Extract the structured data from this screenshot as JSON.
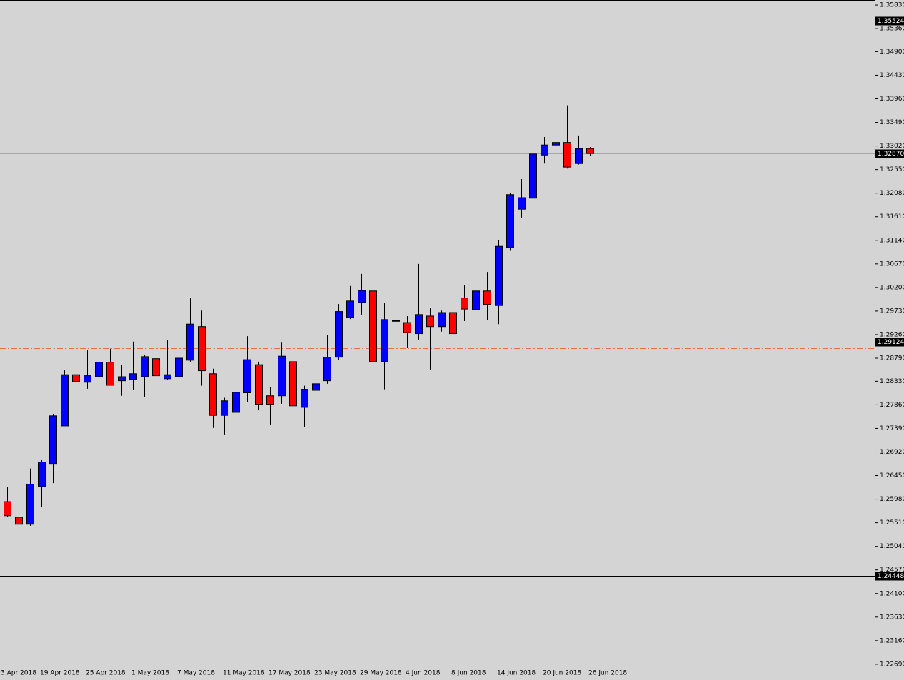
{
  "chart_data": {
    "type": "candlestick",
    "categories": [
      "3 Apr 2018",
      null,
      null,
      null,
      "19 Apr 2018",
      null,
      null,
      null,
      "25 Apr 2018",
      null,
      null,
      null,
      "1 May 2018",
      null,
      null,
      null,
      "7 May 2018",
      null,
      null,
      null,
      "11 May 2018",
      null,
      null,
      null,
      "17 May 2018",
      null,
      null,
      null,
      "23 May 2018",
      null,
      null,
      null,
      "29 May 2018",
      null,
      null,
      null,
      "4 Jun 2018",
      null,
      null,
      null,
      "8 Jun 2018",
      null,
      null,
      null,
      "14 Jun 2018",
      null,
      null,
      null,
      "20 Jun 2018",
      null,
      null,
      null,
      "26 Jun 2018"
    ],
    "open": [
      null,
      1.2593,
      1.2562,
      1.2548,
      1.2623,
      1.2669,
      1.2744,
      1.2846,
      1.2831,
      1.2842,
      1.2871,
      1.2834,
      1.2837,
      1.2842,
      1.2878,
      1.2838,
      1.2842,
      1.2875,
      1.2942,
      1.2848,
      1.2765,
      1.2771,
      1.281,
      1.2866,
      1.2804,
      1.2804,
      1.2872,
      1.2781,
      1.2815,
      1.2834,
      1.2881,
      1.296,
      1.299,
      1.3013,
      1.2872,
      1.2954,
      1.295,
      1.2928,
      1.2963,
      1.2942,
      1.297,
      1.2999,
      1.2976,
      1.3013,
      1.2984,
      1.31,
      1.3176,
      1.3198,
      1.3284,
      1.3304,
      1.3309,
      1.3267,
      1.3297
    ],
    "high": [
      null,
      1.2622,
      1.2579,
      1.2659,
      1.2676,
      1.2768,
      1.2856,
      1.2861,
      1.2896,
      1.2885,
      1.2898,
      1.2865,
      1.2912,
      1.2886,
      1.2909,
      1.2916,
      1.2899,
      1.2999,
      1.2974,
      1.2858,
      1.28,
      1.2814,
      1.2923,
      1.2872,
      1.2822,
      1.291,
      1.2892,
      1.2824,
      1.2915,
      1.2925,
      1.2987,
      1.3023,
      1.3047,
      1.3041,
      1.2989,
      1.3009,
      1.2963,
      1.3067,
      1.2979,
      1.2974,
      1.3038,
      1.3024,
      1.3027,
      1.3051,
      1.3115,
      1.3209,
      1.3236,
      1.329,
      1.332,
      1.3334,
      1.3383,
      1.3323,
      1.33
    ],
    "low": [
      null,
      1.2562,
      1.2527,
      1.2545,
      1.2583,
      1.263,
      1.2744,
      1.2811,
      1.2818,
      1.2821,
      1.2825,
      1.2804,
      1.2815,
      1.2802,
      1.2812,
      1.2835,
      1.2839,
      1.2872,
      1.2824,
      1.274,
      1.2727,
      1.2748,
      1.2792,
      1.2775,
      1.2746,
      1.2788,
      1.278,
      1.2741,
      1.2812,
      1.2828,
      1.2876,
      1.2957,
      1.2966,
      1.2835,
      1.2817,
      1.2935,
      1.2899,
      1.2915,
      1.2856,
      1.2932,
      1.2922,
      1.2953,
      1.2973,
      1.2955,
      1.2947,
      1.3093,
      1.3158,
      1.3196,
      1.3267,
      1.3282,
      1.3257,
      1.3265,
      1.3282
    ],
    "close": [
      null,
      1.2565,
      1.2548,
      1.2628,
      1.2672,
      1.2764,
      1.2846,
      1.2832,
      1.2844,
      1.2871,
      1.2825,
      1.2842,
      1.2848,
      1.2882,
      1.2844,
      1.2846,
      1.2879,
      1.2947,
      1.2854,
      1.2765,
      1.2794,
      1.2811,
      1.2876,
      1.2787,
      1.2787,
      1.2883,
      1.2784,
      1.2817,
      1.2828,
      1.2881,
      1.2972,
      1.2993,
      1.3014,
      1.2872,
      1.2956,
      1.2953,
      1.293,
      1.2966,
      1.2942,
      1.297,
      1.2928,
      1.2977,
      1.3013,
      1.2986,
      1.3102,
      1.3205,
      1.3199,
      1.3286,
      1.3304,
      1.3309,
      1.326,
      1.3297,
      1.3287
    ],
    "up_color": "#0000ff",
    "down_color": "#ff0000",
    "ylim": [
      1.2266,
      1.3593
    ],
    "yticks": [
      {
        "value": 1.3583,
        "label": "1.35830"
      },
      {
        "value": 1.3536,
        "label": "1.35360"
      },
      {
        "value": 1.349,
        "label": "1.34900"
      },
      {
        "value": 1.3443,
        "label": "1.34430"
      },
      {
        "value": 1.3396,
        "label": "1.33960"
      },
      {
        "value": 1.3349,
        "label": "1.33490"
      },
      {
        "value": 1.3302,
        "label": "1.33020"
      },
      {
        "value": 1.3255,
        "label": "1.32550"
      },
      {
        "value": 1.3208,
        "label": "1.32080"
      },
      {
        "value": 1.3161,
        "label": "1.31610"
      },
      {
        "value": 1.3114,
        "label": "1.31140"
      },
      {
        "value": 1.3067,
        "label": "1.30670"
      },
      {
        "value": 1.302,
        "label": "1.30200"
      },
      {
        "value": 1.2973,
        "label": "1.29730"
      },
      {
        "value": 1.2926,
        "label": "1.29260"
      },
      {
        "value": 1.2879,
        "label": "1.28790"
      },
      {
        "value": 1.2833,
        "label": "1.28330"
      },
      {
        "value": 1.2786,
        "label": "1.27860"
      },
      {
        "value": 1.2739,
        "label": "1.27390"
      },
      {
        "value": 1.2692,
        "label": "1.26920"
      },
      {
        "value": 1.2645,
        "label": "1.26450"
      },
      {
        "value": 1.2598,
        "label": "1.25980"
      },
      {
        "value": 1.2551,
        "label": "1.25510"
      },
      {
        "value": 1.2504,
        "label": "1.25040"
      },
      {
        "value": 1.2457,
        "label": "1.24570"
      },
      {
        "value": 1.241,
        "label": "1.24100"
      },
      {
        "value": 1.2363,
        "label": "1.23630"
      },
      {
        "value": 1.2316,
        "label": "1.23160"
      },
      {
        "value": 1.2269,
        "label": "1.22690"
      }
    ],
    "price_levels": [
      {
        "value": 1.35524,
        "label": "1.35524",
        "color": "#000000"
      },
      {
        "value": 1.3287,
        "label": "1.32870",
        "color": "#a8a8a8"
      },
      {
        "value": 1.29124,
        "label": "1.29124",
        "color": "#000000"
      },
      {
        "value": 1.24448,
        "label": "1.24448",
        "color": "#000000"
      }
    ],
    "dashed_levels": [
      {
        "value": 1.3383,
        "color": "#e8703a"
      },
      {
        "value": 1.3319,
        "color": "#2e8b2e"
      },
      {
        "value": 1.2899,
        "color": "#e8703a"
      }
    ]
  }
}
